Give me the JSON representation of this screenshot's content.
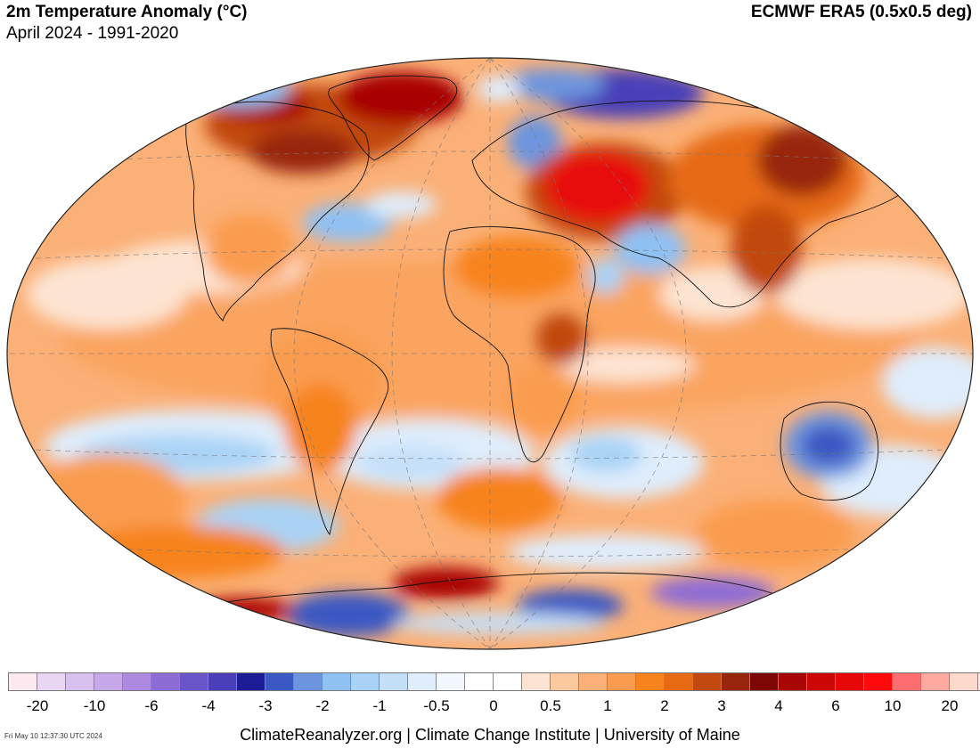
{
  "header": {
    "title": "2m Temperature Anomaly (°C)",
    "subtitle": "April 2024 - 1991-2020",
    "source": "ECMWF ERA5 (0.5x0.5 deg)"
  },
  "legend": {
    "colors": [
      "#fde9f0",
      "#e8d6f3",
      "#d9c1ef",
      "#c7a8e8",
      "#ae89e0",
      "#8d6cd6",
      "#6a55c8",
      "#4a3fb8",
      "#1c1c96",
      "#3a59c2",
      "#6d95df",
      "#8fc1f3",
      "#a9d3f6",
      "#c4e0f9",
      "#dfedfc",
      "#f2f7fe",
      "#ffffff",
      "#ffffff",
      "#fde4d2",
      "#fcc89e",
      "#fbb077",
      "#fa9c4f",
      "#f7831e",
      "#e66a14",
      "#c24a10",
      "#98260c",
      "#7d0707",
      "#a80505",
      "#cc0505",
      "#e80707",
      "#ff0a0a",
      "#ff6e6e",
      "#ffa9a0",
      "#fdd9cb",
      "#fde9ef"
    ],
    "tick_labels": [
      "-20",
      "-10",
      "-6",
      "-4",
      "-3",
      "-2",
      "-1",
      "-0.5",
      "0",
      "0.5",
      "1",
      "2",
      "3",
      "4",
      "6",
      "10",
      "20"
    ]
  },
  "footer": {
    "credit": "ClimateReanalyzer.org | Climate Change Institute | University of Maine",
    "timestamp": "Fri May 10 12:37:30 UTC 2024"
  }
}
